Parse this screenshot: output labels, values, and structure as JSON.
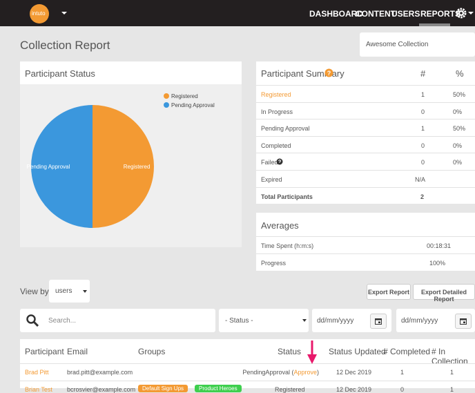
{
  "nav": {
    "logo": "intuto",
    "items": [
      "DASHBOARD",
      "CONTENT",
      "USERS",
      "REPORTS"
    ]
  },
  "page_title": "Collection Report",
  "collection_select": "Awesome Collection",
  "participant_status": {
    "title": "Participant Status",
    "chart_data": {
      "type": "pie",
      "labels": [
        "Registered",
        "Pending Approval"
      ],
      "values": [
        50,
        50
      ],
      "colors": [
        "#f39a33",
        "#3b97dd"
      ]
    }
  },
  "summary": {
    "title": "Participant Summary",
    "columns": [
      "#",
      "%"
    ],
    "rows": [
      [
        "Registered",
        "1",
        "50%"
      ],
      [
        "In Progress",
        "0",
        "0%"
      ],
      [
        "Pending Approval",
        "1",
        "50%"
      ],
      [
        "Completed",
        "0",
        "0%"
      ],
      [
        "Failed",
        "0",
        "0%"
      ],
      [
        "Expired",
        "N/A"
      ],
      [
        "Total Participants",
        "2"
      ]
    ]
  },
  "averages": {
    "title": "Averages",
    "rows": [
      [
        "Time Spent (h:m:s)",
        "00:18:31"
      ],
      [
        "Progress",
        "100%"
      ]
    ]
  },
  "view_by": {
    "label": "View by:",
    "value": "users"
  },
  "buttons": [
    "Export Report",
    "Export Detailed Report"
  ],
  "filters": {
    "search": "Search...",
    "status": "- Status -",
    "date_from": "dd/mm/yyyy",
    "date_to": "dd/mm/yyyy"
  },
  "table": {
    "columns": [
      "Participant",
      "Email",
      "Groups",
      "Status",
      "Status Updated",
      "# Completed",
      "# In Collection"
    ],
    "rows": [
      {
        "participant": "Brad Pitt",
        "email": "brad.pitt@example.com",
        "groups": [],
        "status": "PendingApproval (",
        "action": "Approve",
        "status_end": ")",
        "updated": "12 Dec 2019",
        "completed": "1",
        "in_collection": "1"
      },
      {
        "participant": "Brian Test",
        "email": "bcrosvier@example.com",
        "groups": [
          "Default Sign Ups",
          "Product Heroes"
        ],
        "status": "Registered",
        "updated": "12 Dec 2019",
        "completed": "0",
        "in_collection": "1"
      }
    ]
  }
}
